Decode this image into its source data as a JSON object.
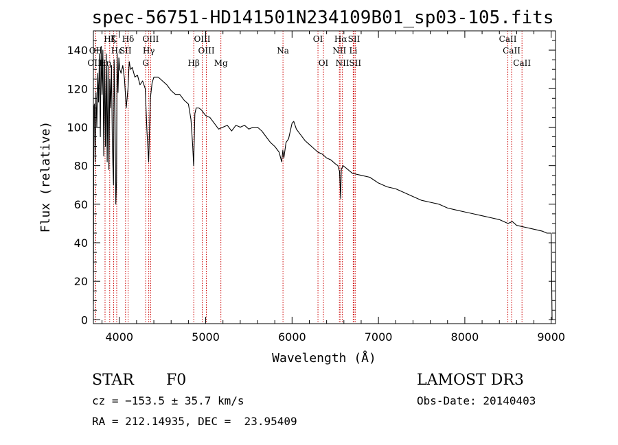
{
  "chart_data": {
    "type": "line",
    "title": "spec-56751-HD141501N234109B01_sp03-105.fits",
    "xlabel": "Wavelength (Å)",
    "ylabel": "Flux (relative)",
    "xlim": [
      3700,
      9050
    ],
    "ylim": [
      -2,
      150
    ],
    "xticks": [
      4000,
      5000,
      6000,
      7000,
      8000,
      9000
    ],
    "yticks": [
      0,
      20,
      40,
      60,
      80,
      100,
      120,
      140
    ],
    "grid": false,
    "series": [
      {
        "name": "spectrum",
        "x": [
          3700,
          3705,
          3712,
          3720,
          3730,
          3740,
          3750,
          3760,
          3770,
          3780,
          3790,
          3800,
          3810,
          3820,
          3830,
          3840,
          3850,
          3860,
          3870,
          3880,
          3890,
          3900,
          3910,
          3920,
          3933,
          3940,
          3950,
          3960,
          3968,
          3975,
          3985,
          3995,
          4005,
          4020,
          4040,
          4060,
          4080,
          4101,
          4115,
          4130,
          4150,
          4180,
          4210,
          4240,
          4270,
          4300,
          4320,
          4340,
          4360,
          4380,
          4400,
          4450,
          4500,
          4550,
          4600,
          4650,
          4700,
          4750,
          4800,
          4830,
          4850,
          4861,
          4875,
          4890,
          4920,
          4950,
          5000,
          5050,
          5100,
          5150,
          5200,
          5250,
          5300,
          5350,
          5400,
          5450,
          5500,
          5550,
          5600,
          5650,
          5700,
          5750,
          5800,
          5850,
          5880,
          5893,
          5905,
          5930,
          5960,
          6000,
          6020,
          6050,
          6100,
          6150,
          6200,
          6250,
          6300,
          6350,
          6400,
          6450,
          6500,
          6530,
          6550,
          6563,
          6570,
          6590,
          6620,
          6700,
          6800,
          6900,
          7000,
          7100,
          7200,
          7300,
          7400,
          7500,
          7600,
          7700,
          7800,
          7900,
          8000,
          8100,
          8200,
          8300,
          8400,
          8500,
          8550,
          8600,
          8700,
          8800,
          8900,
          8950,
          9000,
          9010
        ],
        "values": [
          8,
          110,
          112,
          82,
          118,
          100,
          128,
          113,
          138,
          95,
          142,
          117,
          140,
          85,
          133,
          90,
          138,
          82,
          132,
          78,
          125,
          110,
          132,
          88,
          70,
          135,
          110,
          60,
          72,
          138,
          118,
          136,
          130,
          128,
          132,
          125,
          110,
          120,
          134,
          130,
          131,
          126,
          127,
          122,
          124,
          120,
          98,
          82,
          115,
          123,
          126,
          126,
          124,
          122,
          119,
          117,
          117,
          114,
          112,
          104,
          90,
          80,
          107,
          110,
          110,
          109,
          106,
          105,
          102,
          99,
          100,
          101,
          98,
          101,
          100,
          101,
          99,
          100,
          100,
          98,
          95,
          92,
          90,
          87,
          82,
          88,
          84,
          92,
          94,
          102,
          103,
          99,
          96,
          93,
          91,
          89,
          87,
          86,
          84,
          83,
          81,
          80,
          77,
          63,
          78,
          80,
          79,
          76,
          75,
          74,
          71,
          69,
          68,
          66,
          64,
          62,
          61,
          60,
          58,
          57,
          56,
          55,
          54,
          53,
          52,
          50,
          51,
          49,
          48,
          47,
          46,
          45,
          45,
          0
        ]
      }
    ],
    "line_markers": [
      {
        "label": "Hζ",
        "wavelength": 3889,
        "row": 1
      },
      {
        "label": "OII",
        "wavelength": 3727,
        "row": 2
      },
      {
        "label": "OIII",
        "wavelength": 3727,
        "row": 3
      },
      {
        "label": "K",
        "wavelength": 3934,
        "row": 1
      },
      {
        "label": "Hε",
        "wavelength": 3970,
        "row": 2
      },
      {
        "label": "Hη",
        "wavelength": 3835,
        "row": 3
      },
      {
        "label": "Hδ",
        "wavelength": 4102,
        "row": 1
      },
      {
        "label": "SII",
        "wavelength": 4072,
        "row": 2
      },
      {
        "label": "OIII",
        "wavelength": 4363,
        "row": 1
      },
      {
        "label": "Hγ",
        "wavelength": 4341,
        "row": 2
      },
      {
        "label": "G",
        "wavelength": 4305,
        "row": 3
      },
      {
        "label": "Hβ",
        "wavelength": 4862,
        "row": 3
      },
      {
        "label": "OIII",
        "wavelength": 4960,
        "row": 1
      },
      {
        "label": "OIII",
        "wavelength": 5008,
        "row": 2
      },
      {
        "label": "Mg",
        "wavelength": 5176,
        "row": 3
      },
      {
        "label": "Na",
        "wavelength": 5895,
        "row": 2
      },
      {
        "label": "OI",
        "wavelength": 6300,
        "row": 1
      },
      {
        "label": "OI",
        "wavelength": 6363,
        "row": 3
      },
      {
        "label": "Hα",
        "wavelength": 6563,
        "row": 1
      },
      {
        "label": "NII",
        "wavelength": 6548,
        "row": 2
      },
      {
        "label": "NII",
        "wavelength": 6583,
        "row": 3
      },
      {
        "label": "SII",
        "wavelength": 6717,
        "row": 1
      },
      {
        "label": "Li",
        "wavelength": 6708,
        "row": 2
      },
      {
        "label": "SII",
        "wavelength": 6731,
        "row": 3
      },
      {
        "label": "CaII",
        "wavelength": 8498,
        "row": 1
      },
      {
        "label": "CaII",
        "wavelength": 8542,
        "row": 2
      },
      {
        "label": "CaII",
        "wavelength": 8662,
        "row": 3
      }
    ],
    "marker_color": "#cc0000"
  },
  "info": {
    "object_class": "STAR",
    "subclass": "F0",
    "survey": "LAMOST DR3",
    "redshift": "cz = −153.5 ± 35.7 km/s",
    "obs_date": "Obs-Date: 20140403",
    "coords": "RA = 212.14935, DEC =  23.95409"
  }
}
